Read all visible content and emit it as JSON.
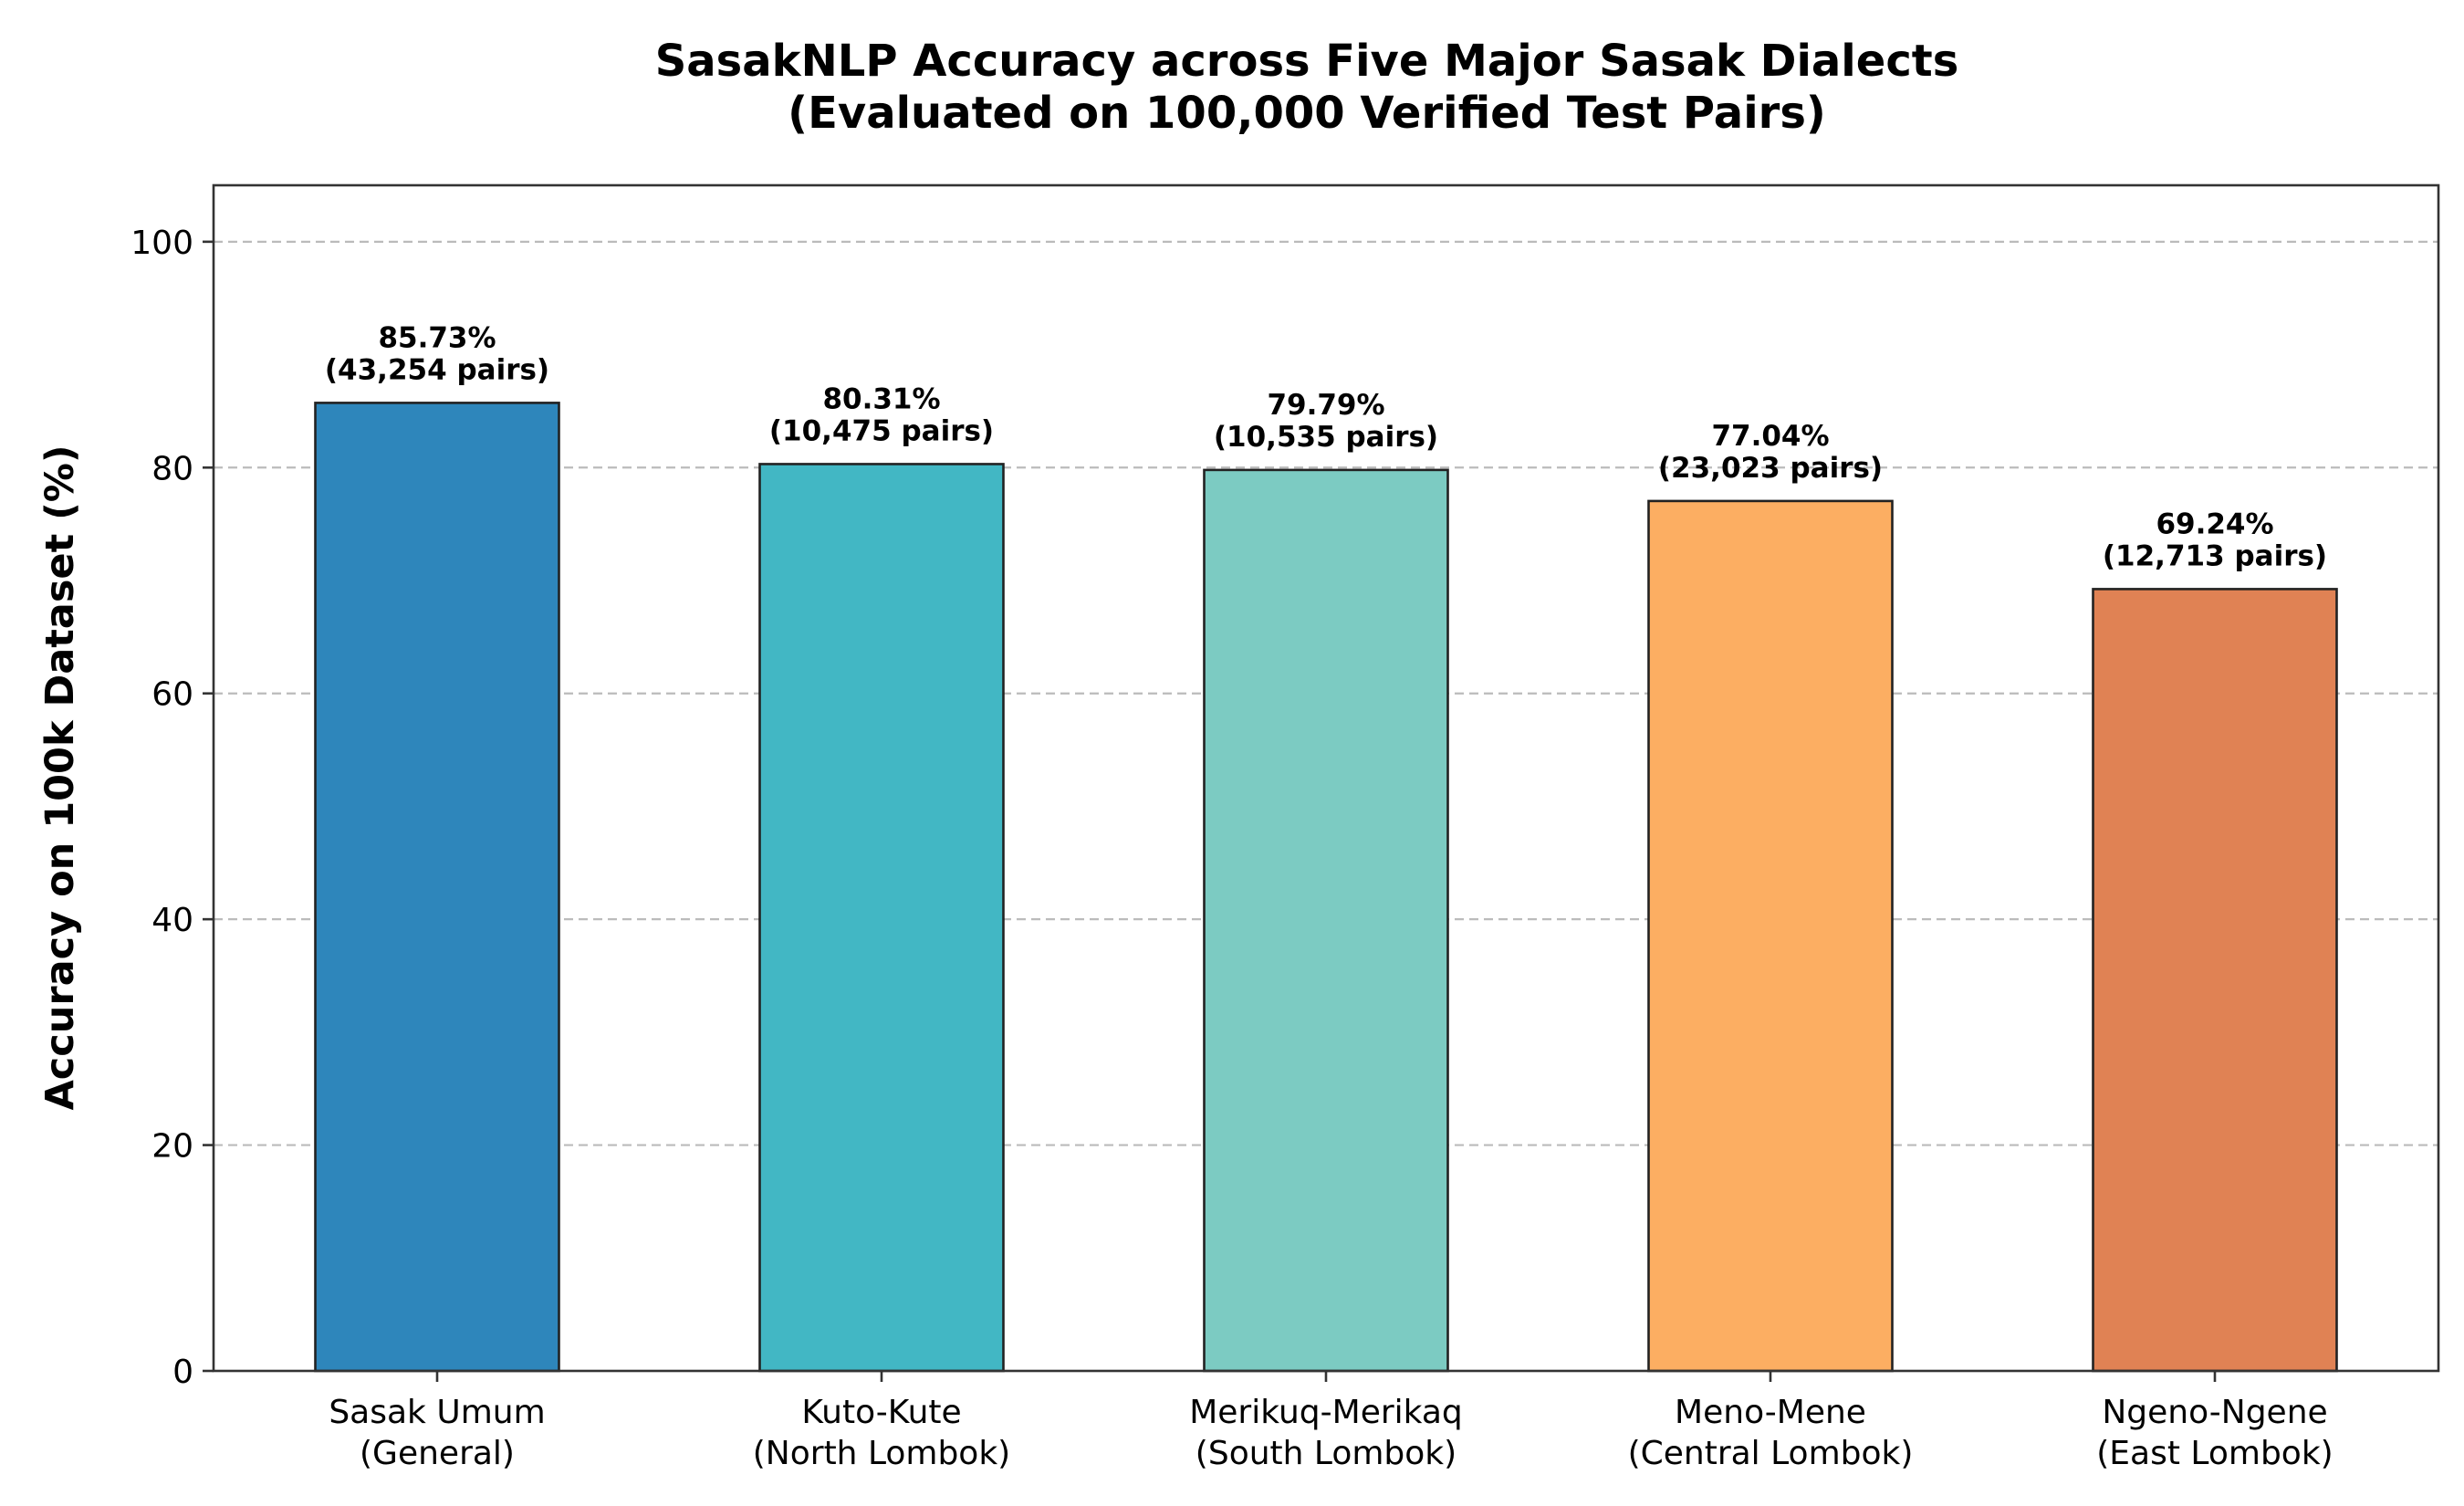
{
  "chart_data": {
    "type": "bar",
    "title_lines": [
      "SasakNLP Accuracy across Five Major Sasak Dialects",
      "(Evaluated on 100,000 Verified Test Pairs)"
    ],
    "ylabel": "Accuracy on 100k Dataset (%)",
    "xlabel": "",
    "ylim": [
      0,
      105
    ],
    "yticks": [
      0,
      20,
      40,
      60,
      80,
      100
    ],
    "grid": "y-dashed",
    "categories": [
      [
        "Sasak Umum",
        "(General)"
      ],
      [
        "Kuto-Kute",
        "(North Lombok)"
      ],
      [
        "Merikuq-Merikaq",
        "(South Lombok)"
      ],
      [
        "Meno-Mene",
        "(Central Lombok)"
      ],
      [
        "Ngeno-Ngene",
        "(East Lombok)"
      ]
    ],
    "values": [
      85.73,
      80.31,
      79.79,
      77.04,
      69.24
    ],
    "data_labels": [
      [
        "85.73%",
        "(43,254 pairs)"
      ],
      [
        "80.31%",
        "(10,475 pairs)"
      ],
      [
        "79.79%",
        "(10,535 pairs)"
      ],
      [
        "77.04%",
        "(23,023 pairs)"
      ],
      [
        "69.24%",
        "(12,713 pairs)"
      ]
    ],
    "colors": [
      "#2e86bb",
      "#42b7c4",
      "#7ccbc2",
      "#fcae62",
      "#e08254"
    ]
  }
}
